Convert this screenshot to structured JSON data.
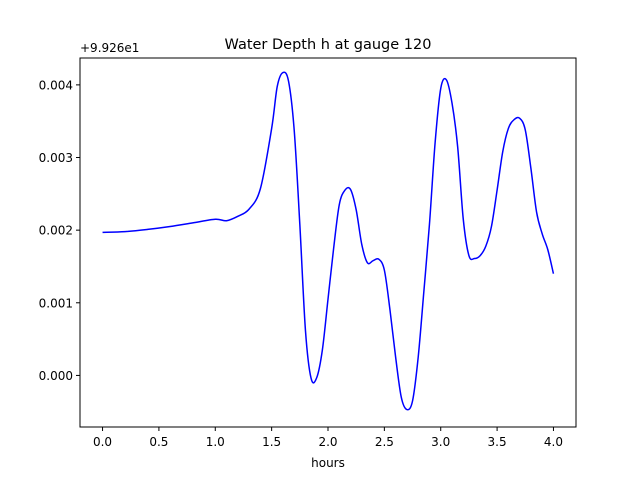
{
  "chart_data": {
    "type": "line",
    "title": "Water Depth h at gauge 120",
    "xlabel": "hours",
    "ylabel": "",
    "offset_text": "+9.926e1",
    "xlim": [
      -0.2,
      4.2
    ],
    "ylim": [
      -0.00071,
      0.00437
    ],
    "xticks": [
      0.0,
      0.5,
      1.0,
      1.5,
      2.0,
      2.5,
      3.0,
      3.5,
      4.0
    ],
    "xtick_labels": [
      "0.0",
      "0.5",
      "1.0",
      "1.5",
      "2.0",
      "2.5",
      "3.0",
      "3.5",
      "4.0"
    ],
    "yticks": [
      0.0,
      0.001,
      0.002,
      0.003,
      0.004
    ],
    "ytick_labels": [
      "0.000",
      "0.001",
      "0.002",
      "0.003",
      "0.004"
    ],
    "grid": false,
    "series": [
      {
        "color": "#0000ff",
        "x": [
          0.0,
          0.2,
          0.4,
          0.6,
          0.8,
          1.0,
          1.1,
          1.2,
          1.3,
          1.4,
          1.5,
          1.55,
          1.6,
          1.65,
          1.7,
          1.75,
          1.8,
          1.85,
          1.9,
          1.95,
          2.0,
          2.05,
          2.1,
          2.15,
          2.2,
          2.25,
          2.3,
          2.35,
          2.4,
          2.45,
          2.5,
          2.55,
          2.6,
          2.65,
          2.7,
          2.75,
          2.8,
          2.85,
          2.9,
          2.95,
          3.0,
          3.05,
          3.1,
          3.15,
          3.2,
          3.25,
          3.3,
          3.35,
          3.4,
          3.45,
          3.5,
          3.55,
          3.6,
          3.65,
          3.7,
          3.75,
          3.8,
          3.85,
          3.9,
          3.95,
          4.0
        ],
        "y": [
          0.00197,
          0.00198,
          0.00201,
          0.00205,
          0.0021,
          0.00215,
          0.00213,
          0.00219,
          0.00229,
          0.00257,
          0.0034,
          0.00398,
          0.00417,
          0.00405,
          0.00338,
          0.00208,
          0.00062,
          -4e-05,
          -3e-05,
          0.00035,
          0.00105,
          0.00175,
          0.00235,
          0.00255,
          0.00256,
          0.00228,
          0.0018,
          0.00155,
          0.00158,
          0.0016,
          0.00145,
          0.0009,
          0.00025,
          -0.0003,
          -0.00047,
          -0.00035,
          0.00025,
          0.00115,
          0.00208,
          0.0032,
          0.00395,
          0.00407,
          0.00375,
          0.00315,
          0.00215,
          0.00165,
          0.00161,
          0.00165,
          0.00178,
          0.00205,
          0.00255,
          0.00308,
          0.0034,
          0.00352,
          0.00354,
          0.00338,
          0.00285,
          0.00225,
          0.00195,
          0.00173,
          0.0014
        ]
      }
    ]
  }
}
